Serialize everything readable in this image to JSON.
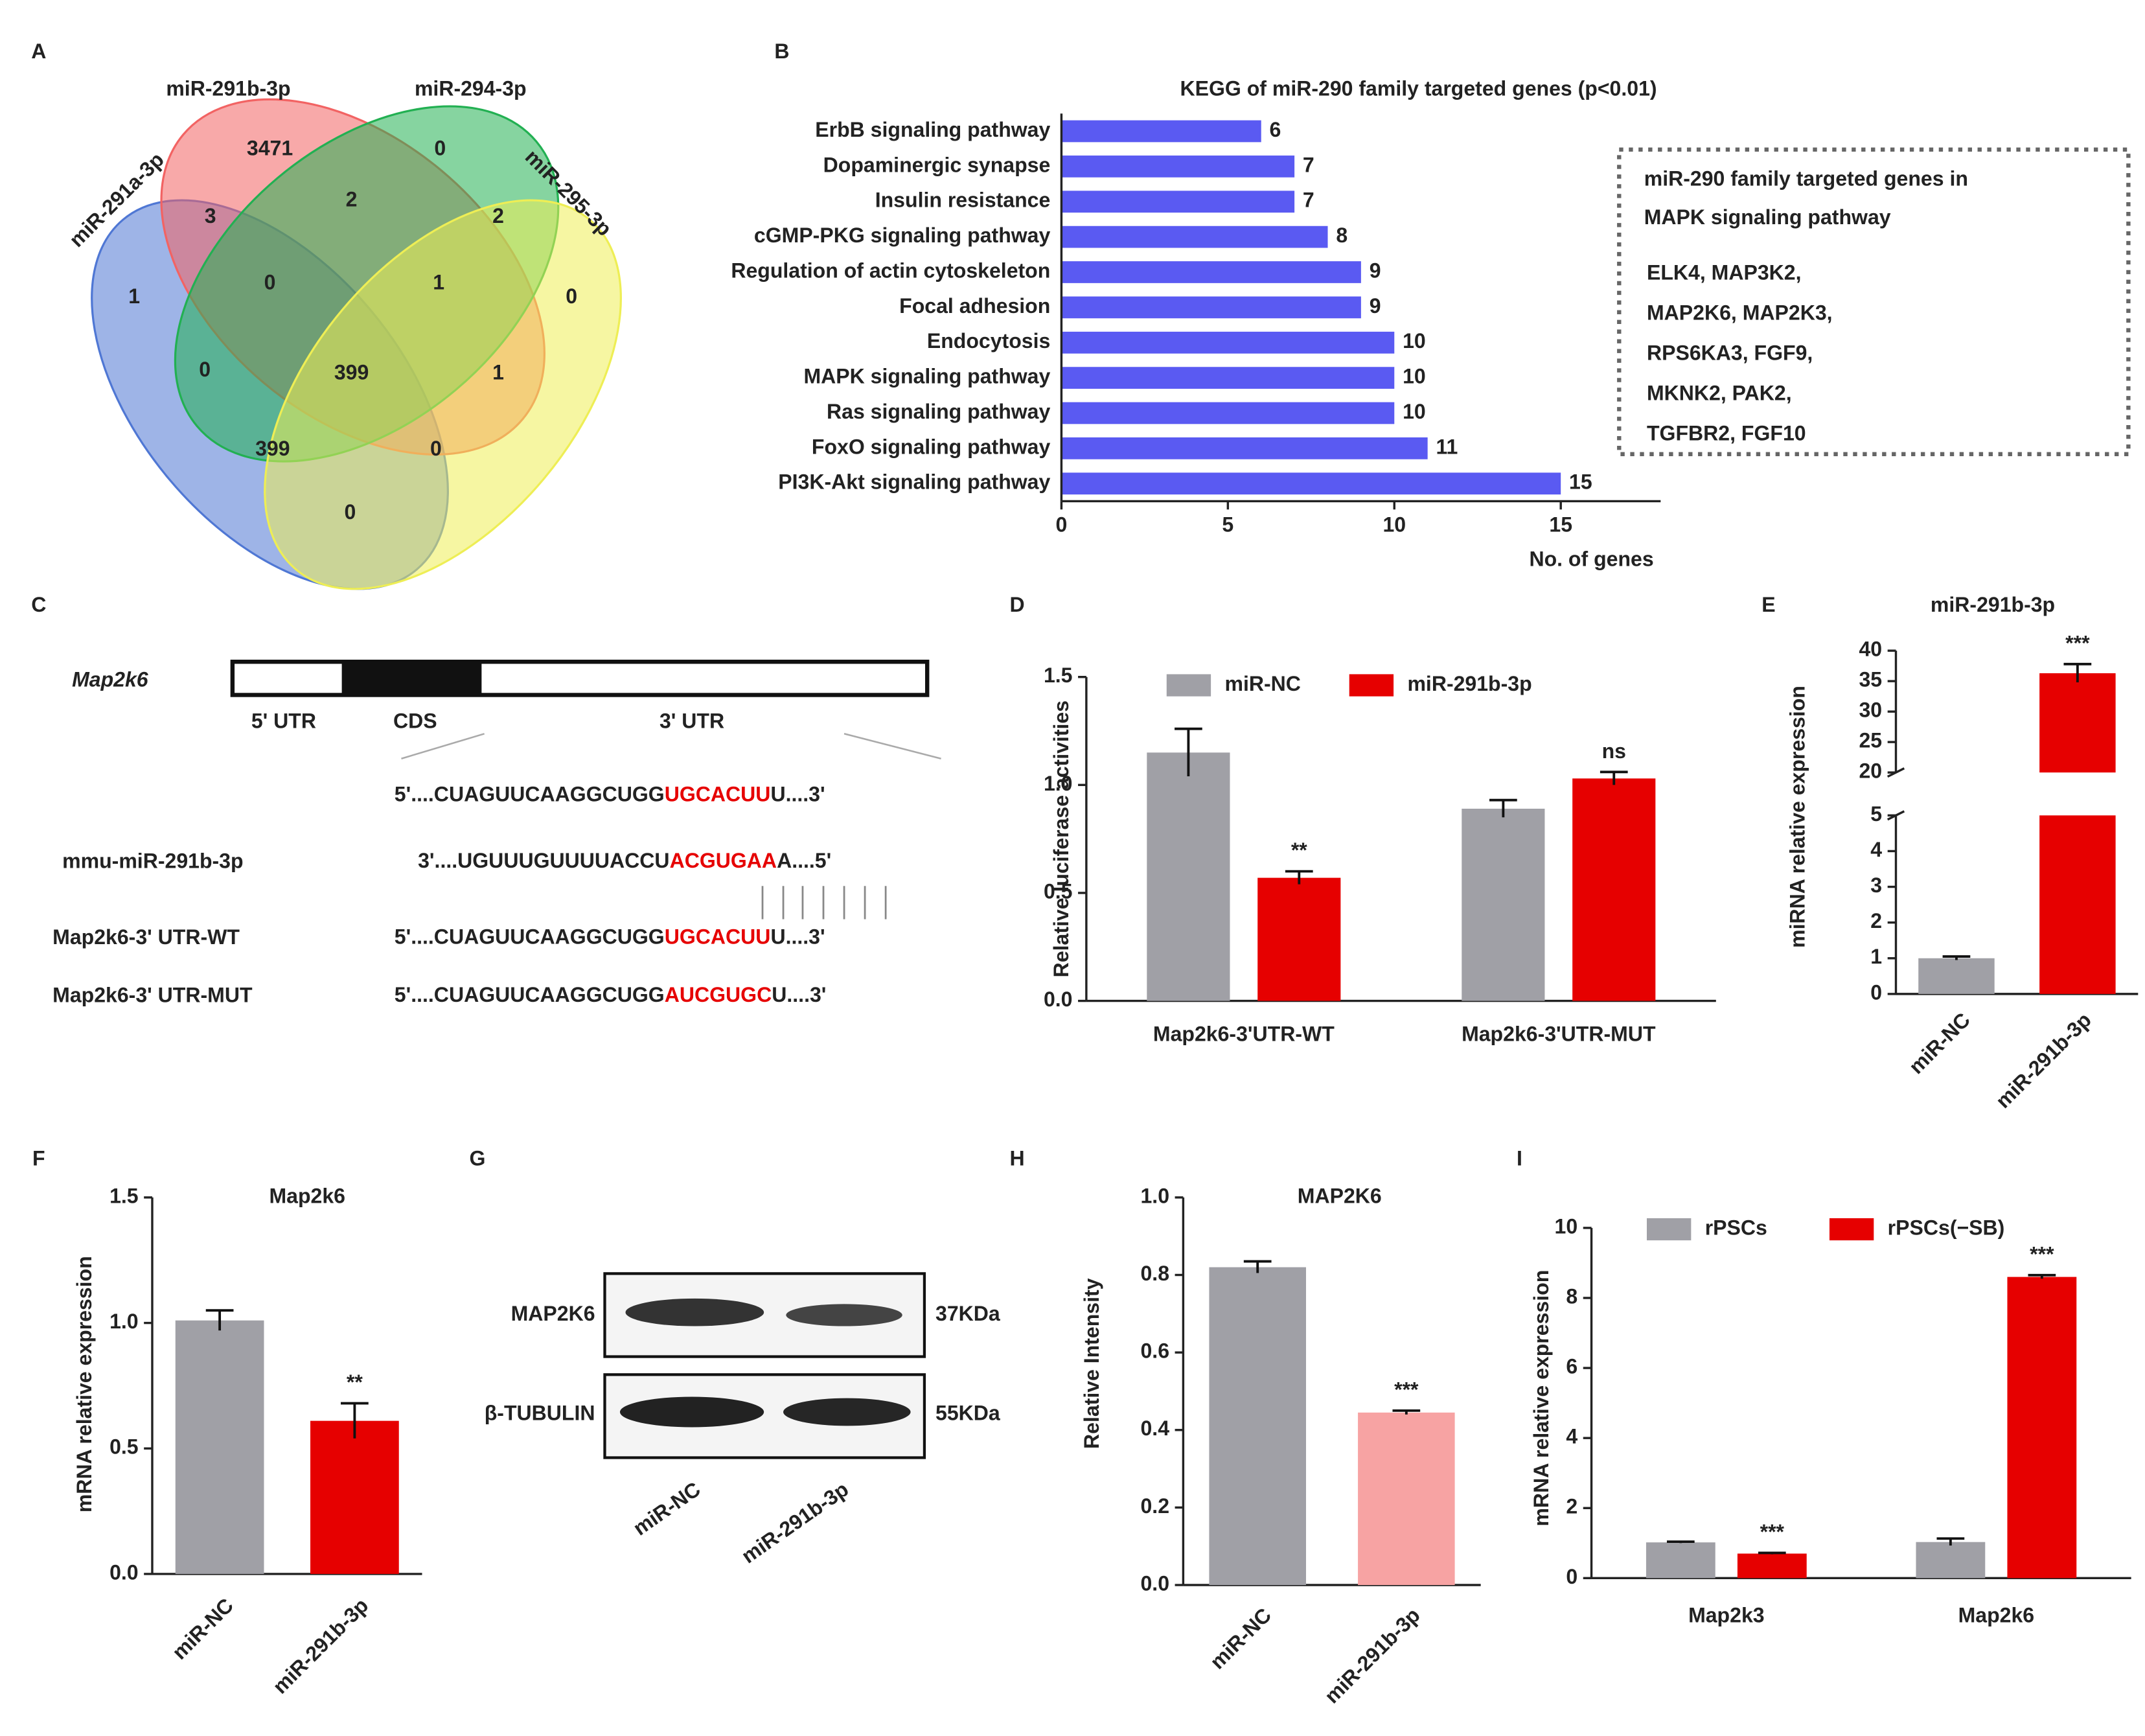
{
  "panel_labels": [
    "A",
    "B",
    "C",
    "D",
    "E",
    "F",
    "G",
    "H",
    "I"
  ],
  "venn": {
    "sets": [
      {
        "name": "miR-291a-3p",
        "color": "#4f77d4"
      },
      {
        "name": "miR-291b-3p",
        "color": "#f26363"
      },
      {
        "name": "miR-294-3p",
        "color": "#22b052"
      },
      {
        "name": "miR-295-3p",
        "color": "#eeee55"
      }
    ],
    "regions": [
      3471,
      0,
      3,
      2,
      2,
      1,
      0,
      1,
      0,
      0,
      399,
      1,
      399,
      0,
      0
    ]
  },
  "chart_data": [
    {
      "type": "hbar",
      "title": "KEGG of miR-290 family targeted genes (p<0.01)",
      "categories": [
        "ErbB signaling pathway",
        "Dopaminergic synapse",
        "Insulin resistance",
        "cGMP-PKG signaling pathway",
        "Regulation of actin cytoskeleton",
        "Focal adhesion",
        "Endocytosis",
        "MAPK signaling pathway",
        "Ras signaling pathway",
        "FoxO signaling pathway",
        "PI3K-Akt signaling pathway"
      ],
      "values": [
        6,
        7,
        7,
        8,
        9,
        9,
        10,
        10,
        10,
        11,
        15
      ],
      "color": "#5a5af2",
      "xlim": [
        0,
        18
      ],
      "xticks": [
        0,
        5,
        10,
        15
      ],
      "xlabel": "No. of genes"
    },
    {
      "type": "bar",
      "categories": [
        "Map2k6-3'UTR-WT",
        "Map2k6-3'UTR-MUT"
      ],
      "series": [
        {
          "name": "miR-NC",
          "color": "#a0a0a6",
          "values": [
            1.15,
            0.89
          ],
          "errors": [
            0.11,
            0.04
          ]
        },
        {
          "name": "miR-291b-3p",
          "color": "#e60000",
          "values": [
            0.57,
            1.03
          ],
          "errors": [
            0.03,
            0.03
          ],
          "significance": [
            "**",
            "ns"
          ]
        }
      ],
      "ylim": [
        0,
        1.5
      ],
      "yticks": [
        {
          "value": 0,
          "label": "0.0"
        },
        {
          "value": 0.5,
          "label": "0.5"
        },
        {
          "value": 1,
          "label": "1.0"
        },
        {
          "value": 1.5,
          "label": "1.5"
        }
      ],
      "ylabel": "Relative luciferase activities"
    },
    {
      "type": "bar",
      "title": "miR-291b-3p",
      "categories": [
        "miR-NC",
        "miR-291b-3p"
      ],
      "values": [
        1.0,
        36.3
      ],
      "errors": [
        0.05,
        1.5
      ],
      "colors": [
        "#a0a0a6",
        "#e60000"
      ],
      "significance": [
        null,
        "***"
      ],
      "ylim": [
        0,
        40
      ],
      "axis_break": [
        5,
        20
      ],
      "yticks": [
        0,
        1,
        2,
        3,
        4,
        5,
        20,
        25,
        30,
        35,
        40
      ],
      "ylabel": "miRNA  relative expression"
    },
    {
      "type": "bar",
      "title": "Map2k6",
      "categories": [
        "miR-NC",
        "miR-291b-3p"
      ],
      "values": [
        1.01,
        0.61
      ],
      "errors": [
        0.04,
        0.07
      ],
      "colors": [
        "#a0a0a6",
        "#e60000"
      ],
      "significance": [
        null,
        "**"
      ],
      "ylim": [
        0,
        1.5
      ],
      "yticks": [
        {
          "value": 0,
          "label": "0.0"
        },
        {
          "value": 0.5,
          "label": "0.5"
        },
        {
          "value": 1,
          "label": "1.0"
        },
        {
          "value": 1.5,
          "label": "1.5"
        }
      ],
      "ylabel": "mRNA  relative expression"
    },
    {
      "type": "bar",
      "title": "MAP2K6",
      "categories": [
        "miR-NC",
        "miR-291b-3p"
      ],
      "values": [
        0.82,
        0.445
      ],
      "errors": [
        0.015,
        0.005
      ],
      "colors": [
        "#a0a0a6",
        "#f7a3a3"
      ],
      "significance": [
        null,
        "***"
      ],
      "ylim": [
        0,
        1.0
      ],
      "yticks": [
        {
          "value": 0,
          "label": "0.0"
        },
        {
          "value": 0.2,
          "label": "0.2"
        },
        {
          "value": 0.4,
          "label": "0.4"
        },
        {
          "value": 0.6,
          "label": "0.6"
        },
        {
          "value": 0.8,
          "label": "0.8"
        },
        {
          "value": 1.0,
          "label": "1.0"
        }
      ],
      "ylabel": "Relative Intensity"
    },
    {
      "type": "bar",
      "categories": [
        "Map2k3",
        "Map2k6"
      ],
      "series": [
        {
          "name": "rPSCs",
          "color": "#a0a0a6",
          "values": [
            1.02,
            1.03
          ],
          "errors": [
            0.02,
            0.1
          ]
        },
        {
          "name": "rPSCs(−SB)",
          "color": "#e60000",
          "values": [
            0.7,
            8.6
          ],
          "errors": [
            0.02,
            0.05
          ],
          "significance": [
            "***",
            "***"
          ]
        }
      ],
      "ylim": [
        0,
        10
      ],
      "yticks": [
        0,
        2,
        4,
        6,
        8,
        10
      ],
      "ylabel": "mRNA  relative expression"
    }
  ],
  "mapk_box": {
    "title": [
      "miR-290 family targeted genes in",
      "MAPK signaling pathway"
    ],
    "genes": [
      "ELK4, MAP3K2,",
      "MAP2K6, MAP2K3,",
      "RPS6KA3, FGF9,",
      "MKNK2, PAK2,",
      "TGFBR2, FGF10"
    ]
  },
  "sequence": {
    "gene": "Map2k6",
    "regions": [
      "5' UTR",
      "CDS",
      "3' UTR"
    ],
    "rows": [
      {
        "parts": [
          "5'....CUAGUUCAAGGCUGG",
          "UGCACUU",
          "U....3'"
        ]
      },
      {
        "label": "mmu-miR-291b-3p",
        "parts": [
          "3'....UGUUUGUUUUACCU",
          "ACGUGAA",
          "A....5'"
        ]
      },
      {
        "label": "Map2k6-3' UTR-WT",
        "parts": [
          "5'....CUAGUUCAAGGCUGG",
          "UGCACUU",
          "U....3'"
        ]
      },
      {
        "label": "Map2k6-3' UTR-MUT",
        "parts": [
          "5'....CUAGUUCAAGGCUGG",
          "AUCGUGC",
          "U....3'"
        ]
      }
    ]
  },
  "blot": {
    "proteins": [
      {
        "name": "MAP2K6",
        "size": "37KDa"
      },
      {
        "name": "β-TUBULIN",
        "size": "55KDa"
      }
    ],
    "lanes": [
      "miR-NC",
      "miR-291b-3p"
    ]
  }
}
